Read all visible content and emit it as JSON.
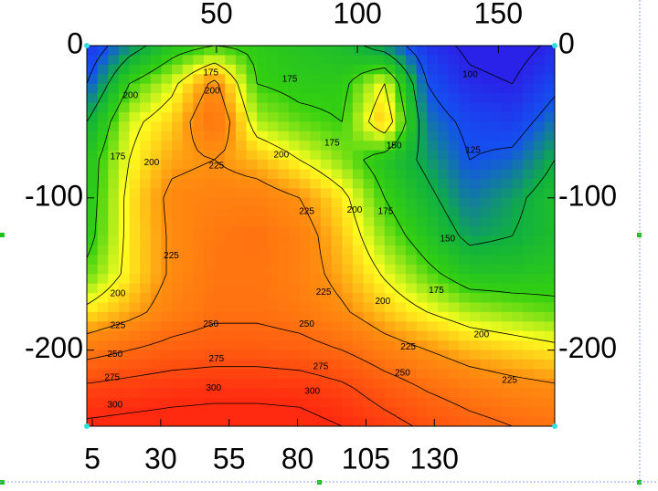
{
  "chart_data": {
    "type": "contour",
    "xlim": [
      4,
      170
    ],
    "xticks": [
      50,
      100,
      150
    ],
    "x2lim": [
      3,
      174
    ],
    "x2ticks": [
      5,
      30,
      55,
      80,
      105,
      130
    ],
    "ylim": [
      -250,
      0
    ],
    "yticks": [
      0,
      -100,
      -200
    ],
    "grid_x": [
      4,
      19.09,
      34.18,
      49.27,
      64.36,
      79.45,
      94.55,
      109.64,
      124.73,
      139.82,
      154.91,
      170
    ],
    "grid_y": [
      0,
      -25,
      -50,
      -75,
      -100,
      -125,
      -150,
      -175,
      -200,
      -225,
      -250
    ],
    "z": [
      [
        110,
        140,
        165,
        175,
        170,
        165,
        160,
        140,
        110,
        95,
        90,
        105
      ],
      [
        125,
        175,
        195,
        230,
        175,
        170,
        170,
        200,
        125,
        105,
        100,
        120
      ],
      [
        150,
        195,
        210,
        245,
        190,
        180,
        175,
        215,
        135,
        120,
        115,
        135
      ],
      [
        165,
        200,
        220,
        225,
        215,
        200,
        185,
        165,
        145,
        125,
        130,
        150
      ],
      [
        165,
        205,
        230,
        235,
        235,
        225,
        205,
        175,
        155,
        135,
        145,
        160
      ],
      [
        168,
        205,
        228,
        240,
        245,
        235,
        212,
        185,
        165,
        145,
        150,
        160
      ],
      [
        180,
        205,
        228,
        242,
        242,
        235,
        218,
        198,
        180,
        165,
        165,
        168
      ],
      [
        205,
        218,
        235,
        245,
        245,
        240,
        228,
        212,
        200,
        190,
        185,
        180
      ],
      [
        240,
        250,
        258,
        262,
        262,
        258,
        250,
        235,
        225,
        215,
        210,
        205
      ],
      [
        280,
        285,
        290,
        292,
        292,
        290,
        280,
        262,
        248,
        238,
        232,
        228
      ],
      [
        305,
        308,
        310,
        312,
        312,
        310,
        300,
        285,
        270,
        258,
        250,
        245
      ]
    ],
    "contour_levels": [
      100,
      125,
      150,
      175,
      200,
      225,
      250,
      275,
      300
    ],
    "colors": [
      "#2a22e8",
      "#1450f0",
      "#10b040",
      "#34d010",
      "#ffff20",
      "#ff9010",
      "#ff6a10",
      "#ff4a10",
      "#ff2a10"
    ],
    "contour_labels": [
      {
        "x": 48,
        "y": -18,
        "value": 175
      },
      {
        "x": 48.5,
        "y": -30,
        "value": 200
      },
      {
        "x": 76,
        "y": -22,
        "value": 175
      },
      {
        "x": 91,
        "y": -64,
        "value": 175
      },
      {
        "x": 73,
        "y": -72,
        "value": 200
      },
      {
        "x": 50,
        "y": -79,
        "value": 225
      },
      {
        "x": 27,
        "y": -77,
        "value": 200
      },
      {
        "x": 15,
        "y": -73,
        "value": 175
      },
      {
        "x": 19.5,
        "y": -33,
        "value": 200
      },
      {
        "x": 82,
        "y": -109,
        "value": 225
      },
      {
        "x": 99,
        "y": -108,
        "value": 200
      },
      {
        "x": 110,
        "y": -109,
        "value": 175
      },
      {
        "x": 113,
        "y": -66,
        "value": 150
      },
      {
        "x": 141,
        "y": -69,
        "value": 125
      },
      {
        "x": 140,
        "y": -19,
        "value": 100
      },
      {
        "x": 132,
        "y": -127,
        "value": 150
      },
      {
        "x": 128,
        "y": -161,
        "value": 175
      },
      {
        "x": 34,
        "y": -138,
        "value": 225
      },
      {
        "x": 88,
        "y": -162,
        "value": 225
      },
      {
        "x": 15,
        "y": -163,
        "value": 200
      },
      {
        "x": 48,
        "y": -183,
        "value": 250
      },
      {
        "x": 82,
        "y": -183,
        "value": 250
      },
      {
        "x": 109,
        "y": -168,
        "value": 200
      },
      {
        "x": 15,
        "y": -184,
        "value": 225
      },
      {
        "x": 14,
        "y": -203,
        "value": 250
      },
      {
        "x": 50,
        "y": -206,
        "value": 275
      },
      {
        "x": 87,
        "y": -211,
        "value": 275
      },
      {
        "x": 118,
        "y": -198,
        "value": 225
      },
      {
        "x": 144,
        "y": -190,
        "value": 200
      },
      {
        "x": 116,
        "y": -215,
        "value": 250
      },
      {
        "x": 154,
        "y": -220,
        "value": 225
      },
      {
        "x": 13,
        "y": -218,
        "value": 275
      },
      {
        "x": 49,
        "y": -225,
        "value": 300
      },
      {
        "x": 84,
        "y": -227,
        "value": 300
      },
      {
        "x": 14,
        "y": -236,
        "value": 300
      }
    ]
  }
}
